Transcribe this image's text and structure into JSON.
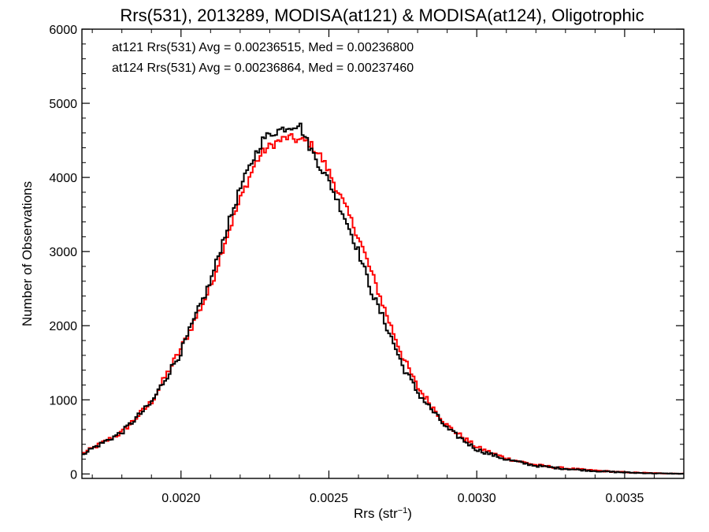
{
  "chart_data": {
    "type": "line",
    "title": "Rrs(531), 2013289, MODISA(at121) & MODISA(at124), Oligotrophic",
    "xlabel": "Rrs (str",
    "xlabel_sup": "−1",
    "xlabel_close": ")",
    "ylabel": "Number of Observations",
    "xlim": [
      0.001665,
      0.0037
    ],
    "ylim": [
      -60,
      6000
    ],
    "x_ticks": [
      {
        "value": 0.002,
        "label": "0.0020"
      },
      {
        "value": 0.0025,
        "label": "0.0025"
      },
      {
        "value": 0.003,
        "label": "0.0030"
      },
      {
        "value": 0.0035,
        "label": "0.0035"
      }
    ],
    "y_ticks": [
      {
        "value": 0,
        "label": "0"
      },
      {
        "value": 1000,
        "label": "1000"
      },
      {
        "value": 2000,
        "label": "2000"
      },
      {
        "value": 3000,
        "label": "3000"
      },
      {
        "value": 4000,
        "label": "4000"
      },
      {
        "value": 5000,
        "label": "5000"
      },
      {
        "value": 6000,
        "label": "6000"
      }
    ],
    "grid": false,
    "legend_position": "top-left",
    "series": [
      {
        "label": "at121 Rrs(531) Avg = 0.00236515, Med = 0.00236800",
        "color": "#000000",
        "stat_avg": 0.00236515,
        "stat_med": 0.002368,
        "x": [
          0.00167,
          0.0018,
          0.0019,
          0.002,
          0.0021,
          0.00215,
          0.0022,
          0.00225,
          0.00228,
          0.00232,
          0.00236,
          0.0024,
          0.00243,
          0.00247,
          0.0025,
          0.00255,
          0.0026,
          0.00265,
          0.0027,
          0.00275,
          0.0028,
          0.0029,
          0.003,
          0.0031,
          0.0032,
          0.0033,
          0.0034,
          0.0035,
          0.0036,
          0.0037
        ],
        "y": [
          280,
          560,
          960,
          1650,
          2600,
          3250,
          3850,
          4300,
          4530,
          4620,
          4680,
          4720,
          4450,
          4150,
          3950,
          3500,
          3000,
          2400,
          1950,
          1450,
          1100,
          610,
          330,
          195,
          110,
          70,
          40,
          20,
          8,
          3
        ]
      },
      {
        "label": "at124 Rrs(531) Avg = 0.00236864, Med = 0.00237460",
        "color": "#ff0000",
        "stat_avg": 0.00236864,
        "stat_med": 0.0023746,
        "x": [
          0.00167,
          0.0018,
          0.0019,
          0.002,
          0.0021,
          0.00215,
          0.0022,
          0.00225,
          0.00228,
          0.00232,
          0.00236,
          0.0024,
          0.00243,
          0.00247,
          0.0025,
          0.00255,
          0.0026,
          0.00265,
          0.0027,
          0.00275,
          0.0028,
          0.0029,
          0.003,
          0.0031,
          0.0032,
          0.0033,
          0.0034,
          0.0035,
          0.0036,
          0.0037
        ],
        "y": [
          280,
          560,
          970,
          1690,
          2520,
          3150,
          3700,
          4180,
          4360,
          4470,
          4540,
          4500,
          4480,
          4300,
          4080,
          3650,
          3200,
          2650,
          2100,
          1580,
          1170,
          650,
          360,
          210,
          120,
          75,
          45,
          22,
          10,
          4
        ]
      }
    ]
  }
}
